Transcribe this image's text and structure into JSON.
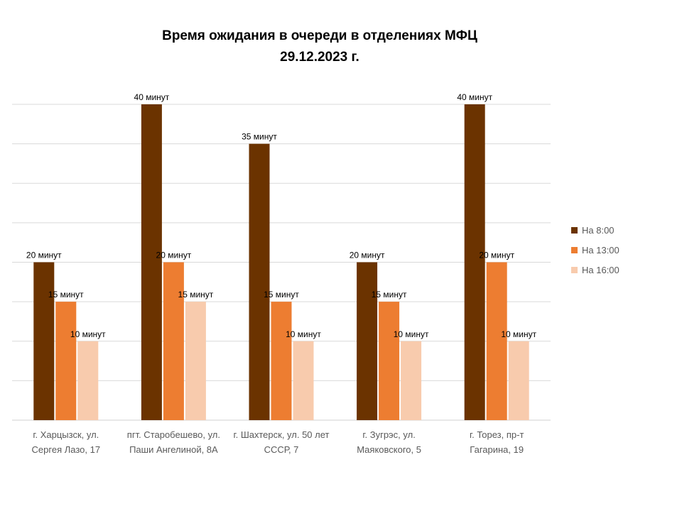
{
  "chart_data": {
    "type": "bar",
    "title": "Время ожидания в очереди в отделениях МФЦ",
    "subtitle": "29.12.2023 г.",
    "xlabel": "",
    "ylabel": "",
    "ylim": [
      0,
      40
    ],
    "grid": true,
    "legend_position": "right",
    "categories": [
      [
        "г. Харцызск, ул.",
        "Сергея Лазо, 17"
      ],
      [
        "пгт. Старобешево, ул.",
        "Паши Ангелиной, 8А"
      ],
      [
        "г. Шахтерск, ул. 50 лет",
        "СССР, 7"
      ],
      [
        "г. Зугрэс, ул.",
        "Маяковского, 5"
      ],
      [
        "г. Торез, пр-т",
        "Гагарина, 19"
      ]
    ],
    "series": [
      {
        "name": "На 8:00",
        "color": "#6B3300",
        "values": [
          20,
          40,
          35,
          20,
          40
        ],
        "labels": [
          "20 минут",
          "40 минут",
          "35 минут",
          "20 минут",
          "40 минут"
        ]
      },
      {
        "name": "На 13:00",
        "color": "#ED7D31",
        "values": [
          15,
          20,
          15,
          15,
          20
        ],
        "labels": [
          "15 минут",
          "20 минут",
          "15 минут",
          "15 минут",
          "20 минут"
        ]
      },
      {
        "name": "На 16:00",
        "color": "#F8CBAD",
        "values": [
          10,
          15,
          10,
          10,
          10
        ],
        "labels": [
          "10 минут",
          "15 минут",
          "10 минут",
          "10 минут",
          "10 минут"
        ]
      }
    ]
  }
}
